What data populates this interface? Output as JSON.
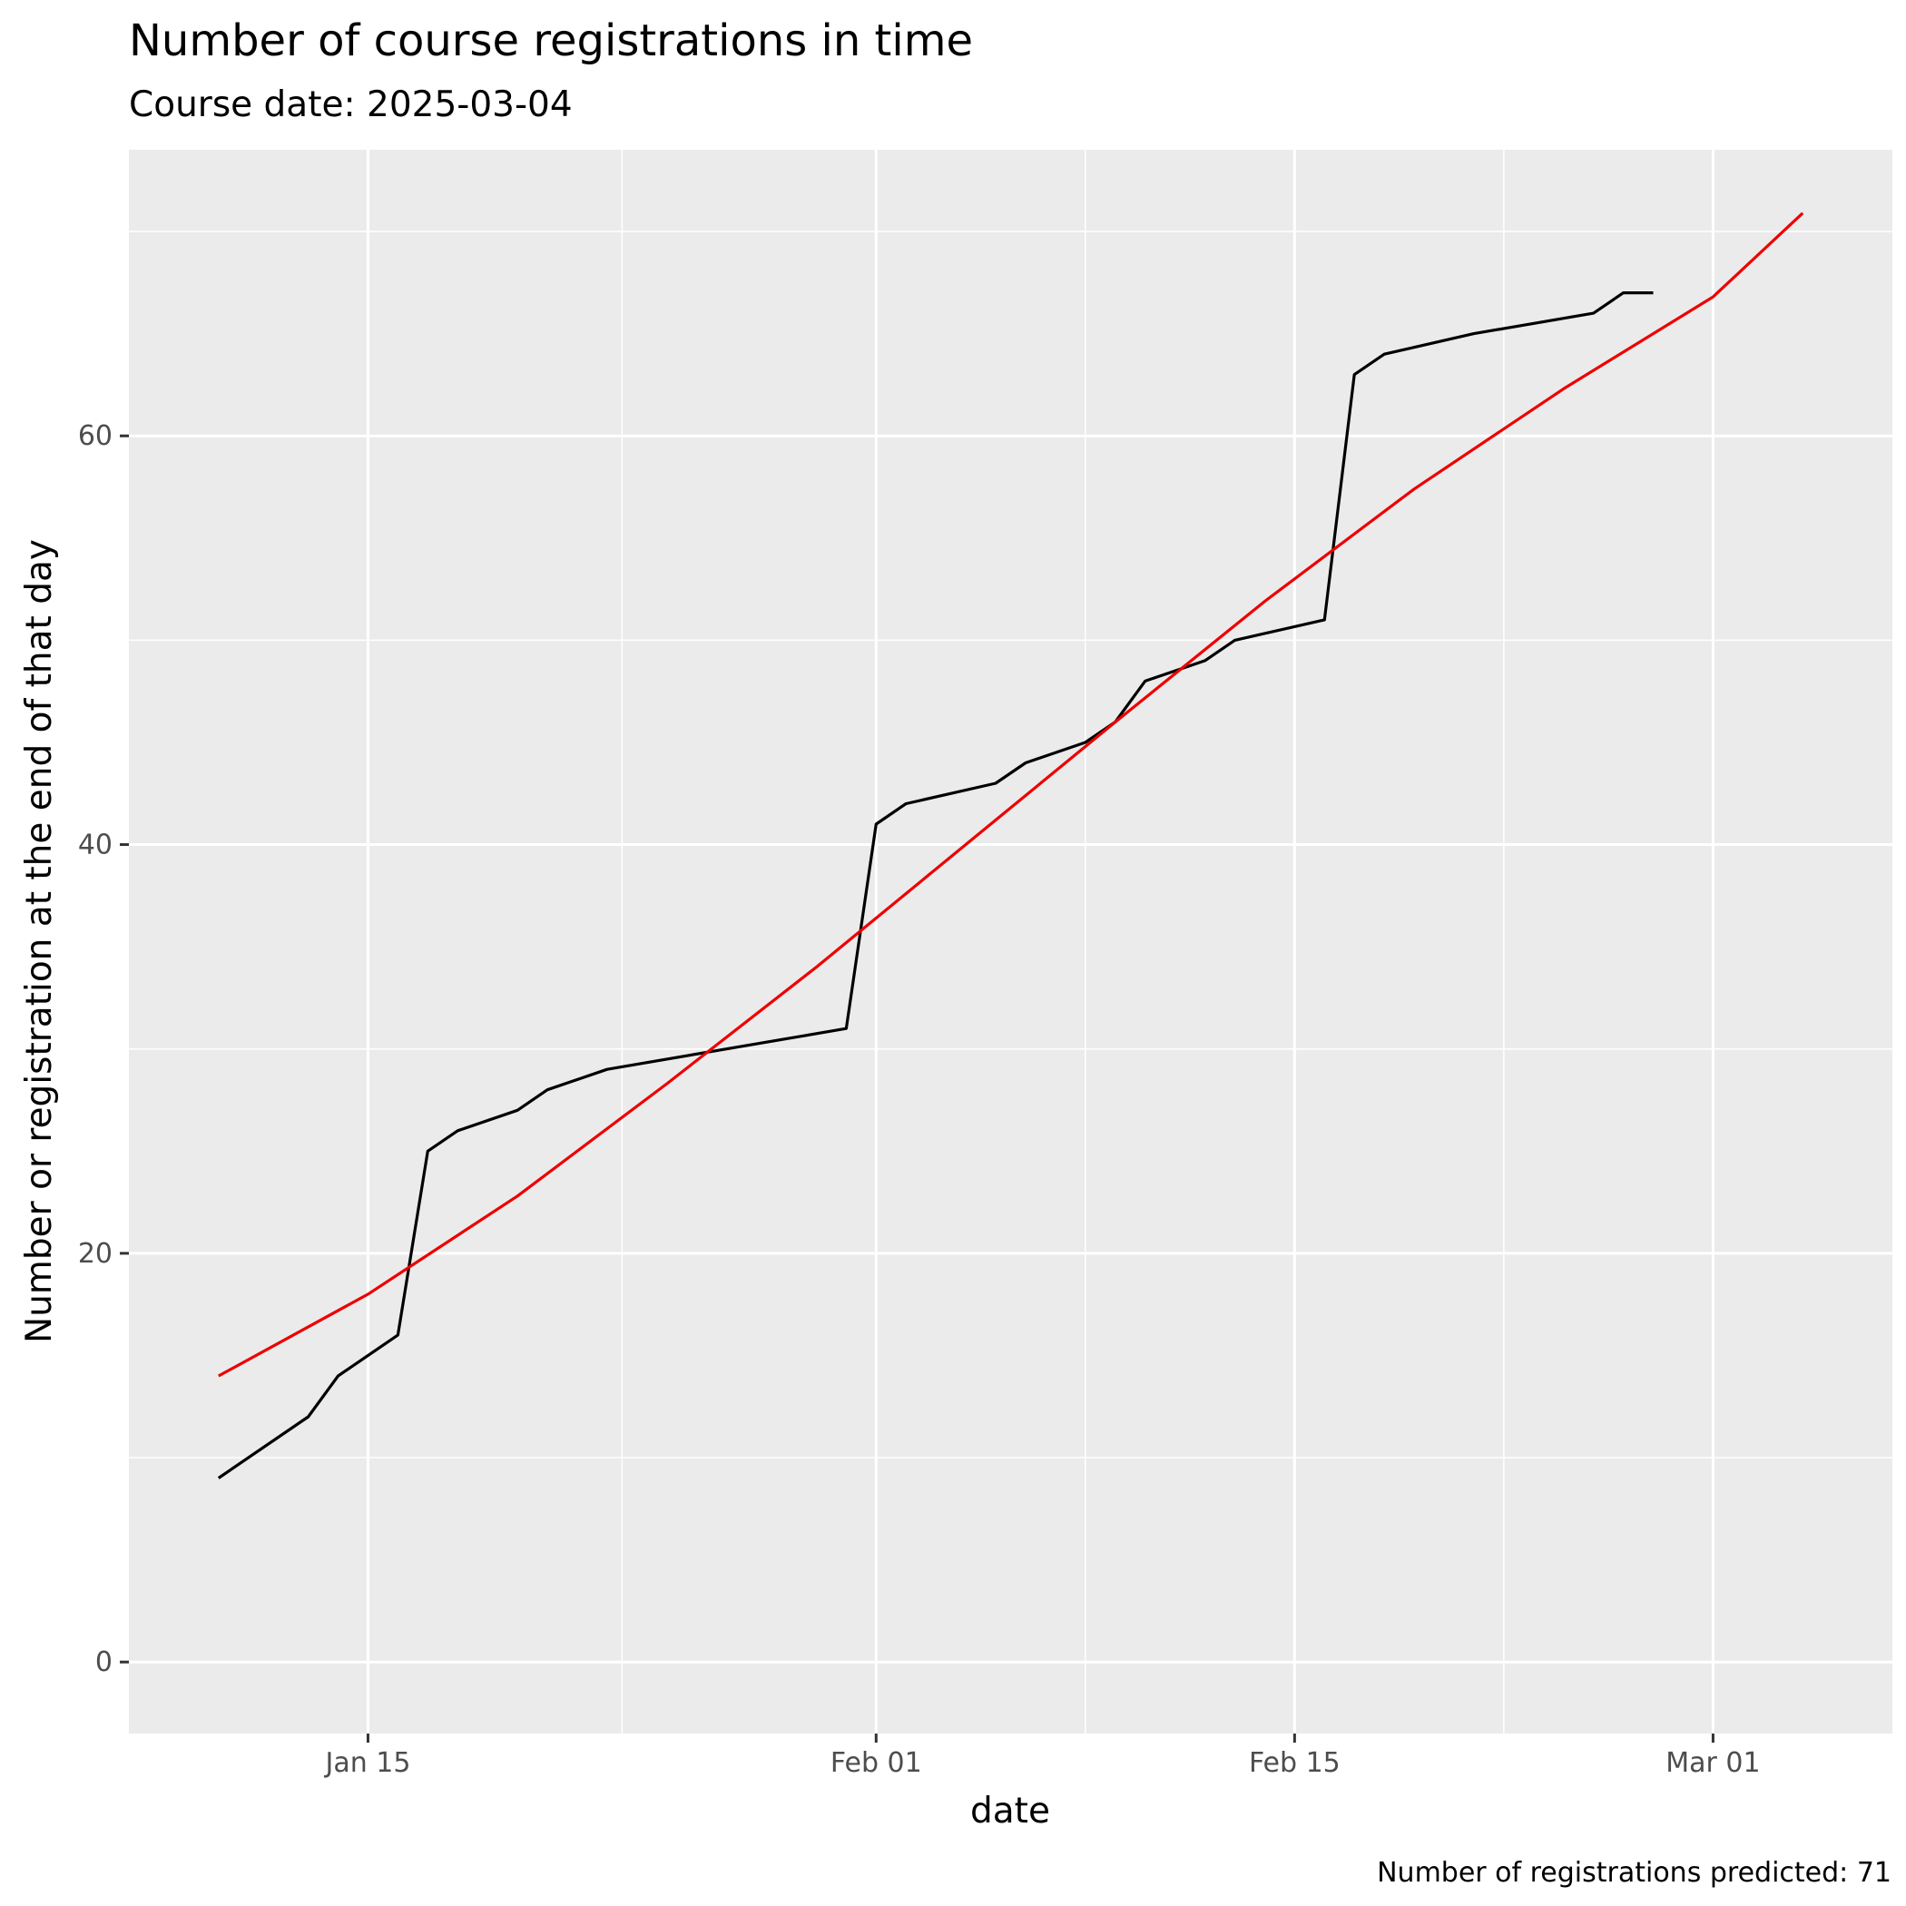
{
  "chart_data": {
    "type": "line",
    "title": "Number of course registrations in time",
    "subtitle": "Course date: 2025-03-04",
    "xlabel": "date",
    "ylabel": "Number or registration at the end of that day",
    "caption": "Number of registrations predicted: 71",
    "x_axis": {
      "type": "date",
      "range": [
        "2025-01-07",
        "2025-03-07"
      ],
      "ticks": [
        {
          "date": "2025-01-15",
          "label": "Jan 15"
        },
        {
          "date": "2025-02-01",
          "label": "Feb 01"
        },
        {
          "date": "2025-02-15",
          "label": "Feb 15"
        },
        {
          "date": "2025-03-01",
          "label": "Mar 01"
        }
      ]
    },
    "y_axis": {
      "range": [
        -3.5,
        74
      ],
      "ticks": [
        0,
        20,
        40,
        60
      ]
    },
    "grid": true,
    "colors": {
      "panel": "#ebebeb",
      "grid": "#ffffff",
      "observed": "#000000",
      "fit": "#ee0000"
    },
    "series": [
      {
        "key": "observed",
        "x": [
          "2025-01-10",
          "2025-01-13",
          "2025-01-14",
          "2025-01-16",
          "2025-01-17",
          "2025-01-18",
          "2025-01-20",
          "2025-01-21",
          "2025-01-23",
          "2025-01-31",
          "2025-02-01",
          "2025-02-02",
          "2025-02-05",
          "2025-02-06",
          "2025-02-08",
          "2025-02-09",
          "2025-02-10",
          "2025-02-12",
          "2025-02-13",
          "2025-02-16",
          "2025-02-17",
          "2025-02-18",
          "2025-02-21",
          "2025-02-25",
          "2025-02-26",
          "2025-02-27"
        ],
        "values": [
          9,
          12,
          14,
          16,
          25,
          26,
          27,
          28,
          29,
          31,
          41,
          42,
          43,
          44,
          45,
          46,
          48,
          49,
          50,
          51,
          63,
          64,
          65,
          66,
          67,
          67
        ]
      },
      {
        "key": "fit",
        "x": [
          "2025-01-10",
          "2025-01-15",
          "2025-01-20",
          "2025-01-25",
          "2025-01-30",
          "2025-02-04",
          "2025-02-09",
          "2025-02-14",
          "2025-02-19",
          "2025-02-24",
          "2025-03-01",
          "2025-03-04"
        ],
        "values": [
          14,
          18,
          22.8,
          28.3,
          34,
          40,
          46,
          51.9,
          57.4,
          62.3,
          66.8,
          70.9
        ]
      }
    ]
  }
}
